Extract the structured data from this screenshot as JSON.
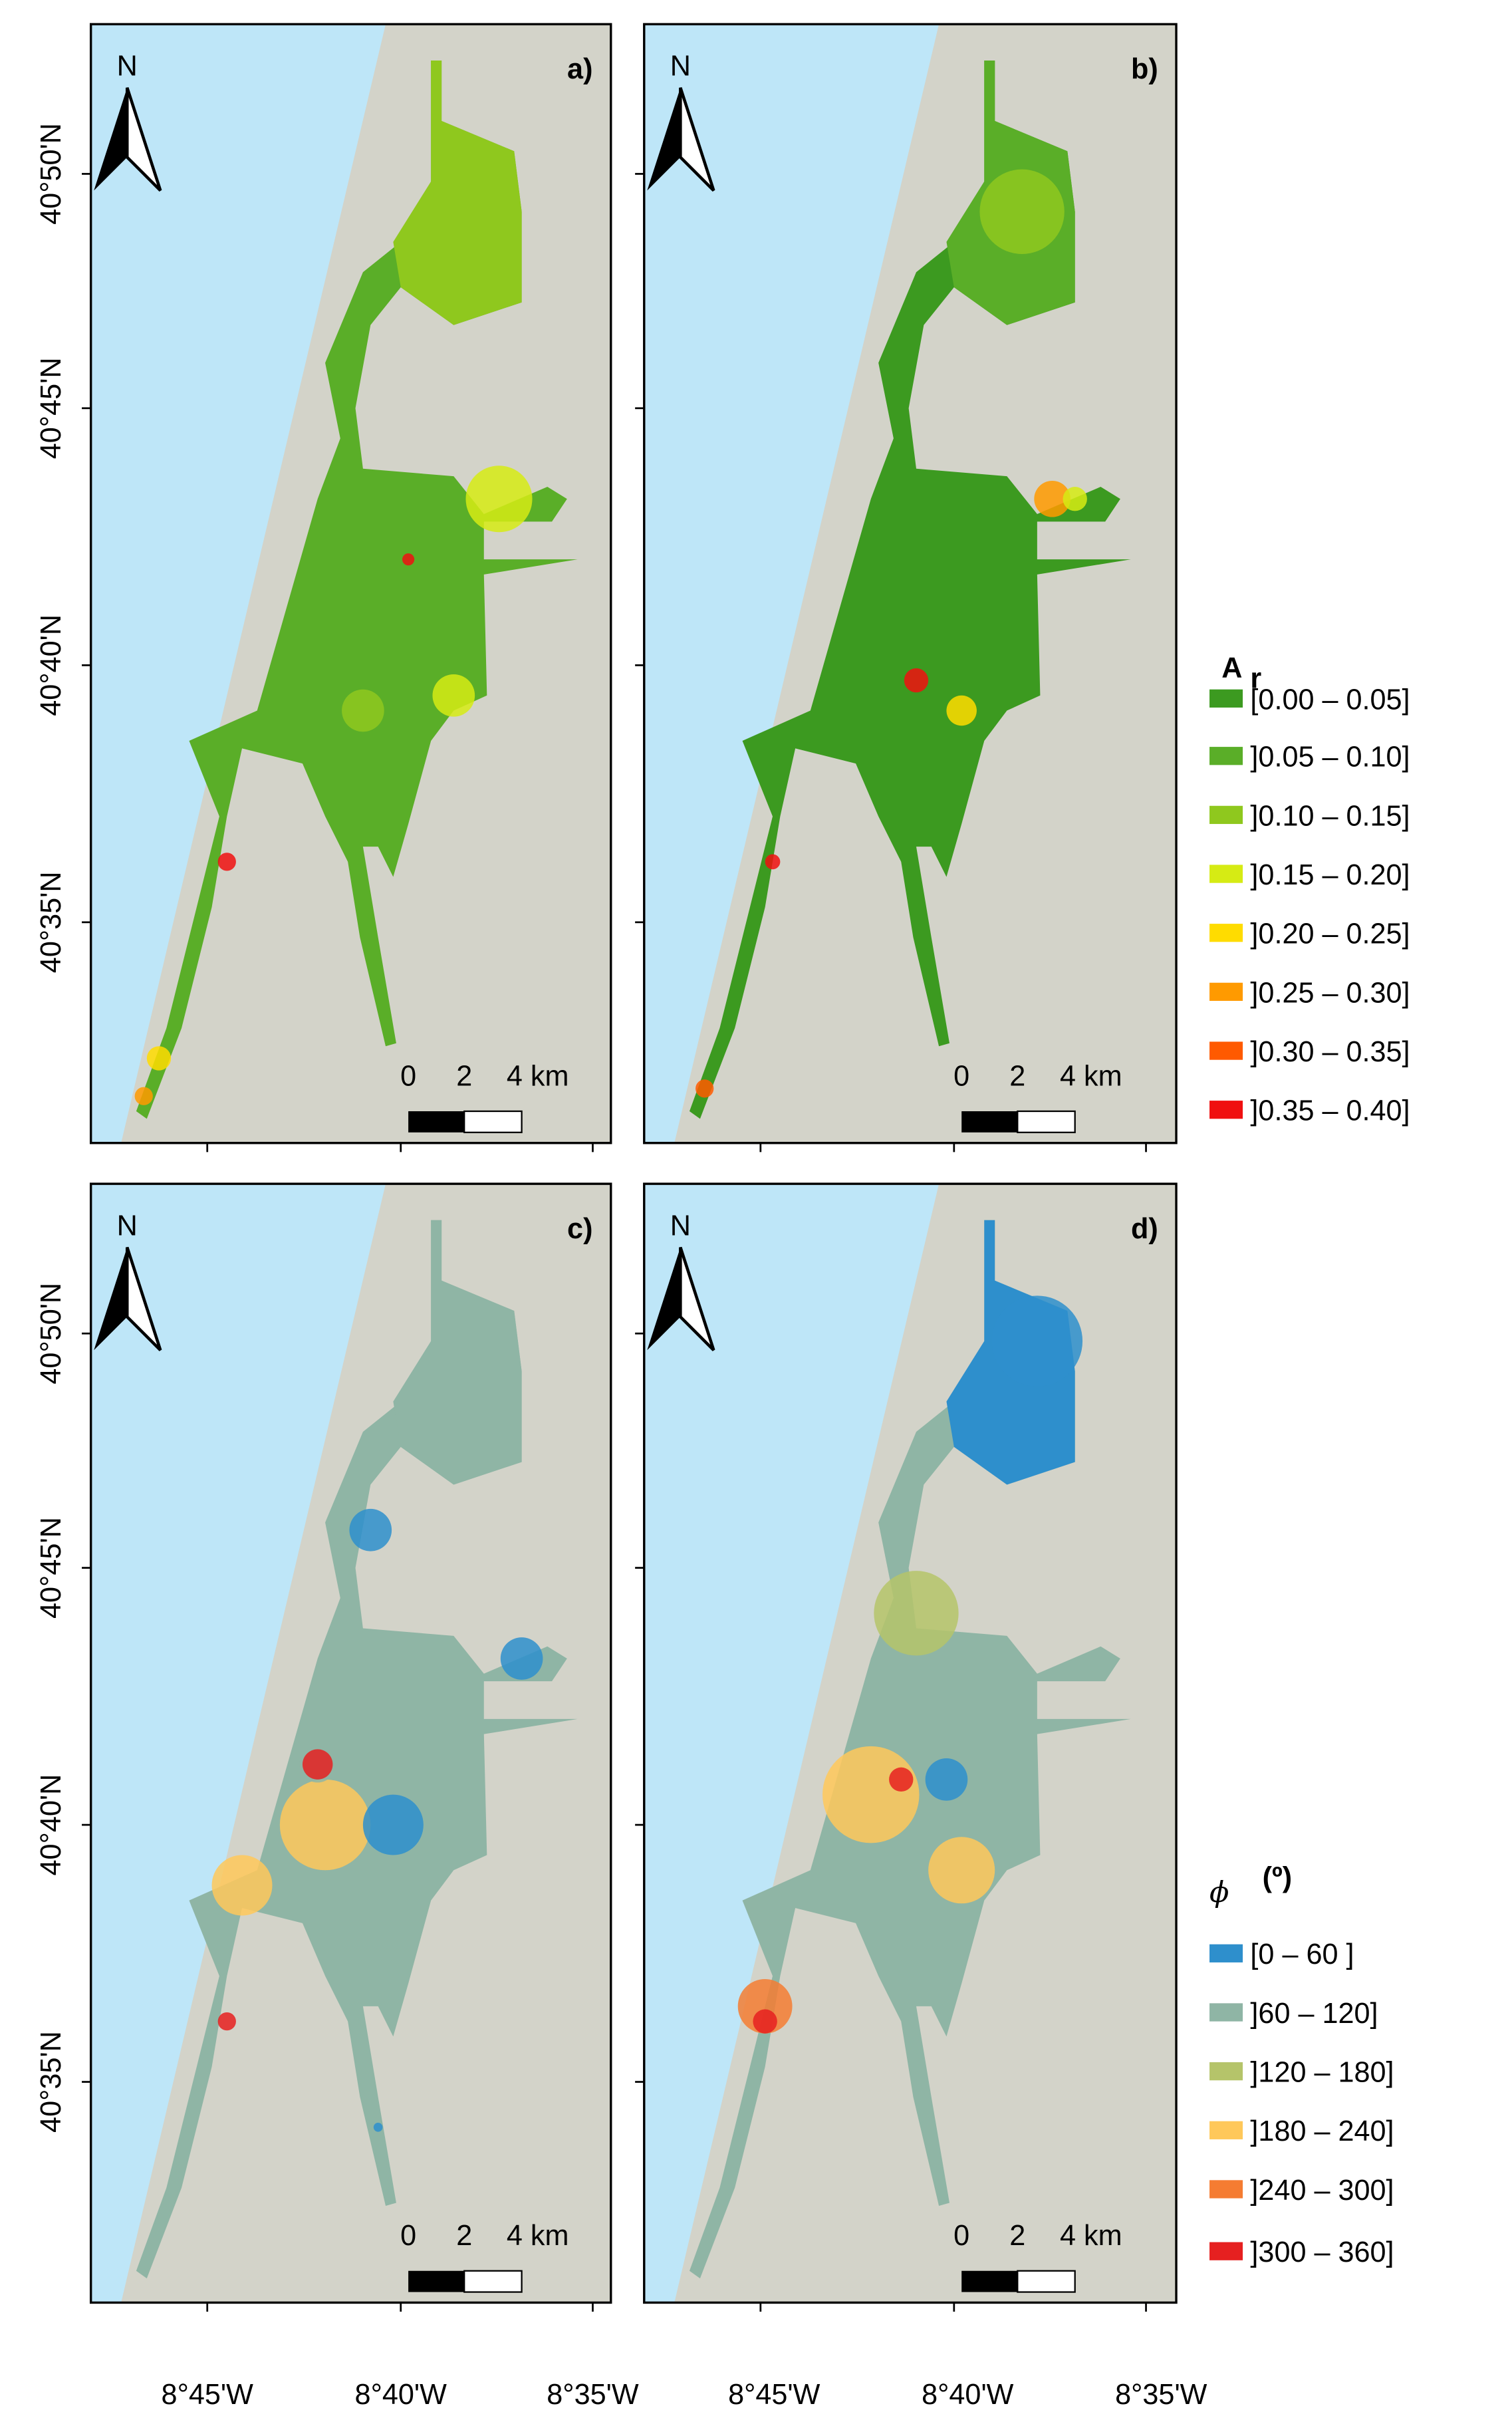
{
  "panels": [
    {
      "label": "a)"
    },
    {
      "label": "b)"
    },
    {
      "label": "c)"
    },
    {
      "label": "d)"
    }
  ],
  "north": "N",
  "scale_bar": {
    "labels": [
      "0",
      "2",
      "4 km"
    ]
  },
  "lat_labels": [
    "40°50'N",
    "40°45'N",
    "40°40'N",
    "40°35'N"
  ],
  "lon_labels": [
    "8°45'W",
    "8°40'W",
    "8°35'W"
  ],
  "legends": [
    {
      "title": "A",
      "title_sub": "r",
      "entries": [
        {
          "label": "[0.00 – 0.05]",
          "color": "#3c9a20"
        },
        {
          "label": "]0.05 – 0.10]",
          "color": "#5aae28"
        },
        {
          "label": "]0.10 – 0.15]",
          "color": "#8fc81e"
        },
        {
          "label": "]0.15 – 0.20]",
          "color": "#d6eb14"
        },
        {
          "label": "]0.20 – 0.25]",
          "color": "#ffdc00"
        },
        {
          "label": "]0.25 – 0.30]",
          "color": "#ff9a00"
        },
        {
          "label": "]0.30 – 0.35]",
          "color": "#ff5a00"
        },
        {
          "label": "]0.35 – 0.40]",
          "color": "#f01010"
        }
      ]
    },
    {
      "title": "ϕ",
      "title_unit": "(º)",
      "entries": [
        {
          "label": "[0 – 60 ]",
          "color": "#2e8fcc"
        },
        {
          "label": "]60 – 120]",
          "color": "#8fb5a5"
        },
        {
          "label": "]120 – 180]",
          "color": "#b5c46a"
        },
        {
          "label": "]180 – 240]",
          "color": "#ffc85a"
        },
        {
          "label": "]240 – 300]",
          "color": "#f57c32"
        },
        {
          "label": "]300 – 360]",
          "color": "#e62020"
        }
      ]
    }
  ]
}
